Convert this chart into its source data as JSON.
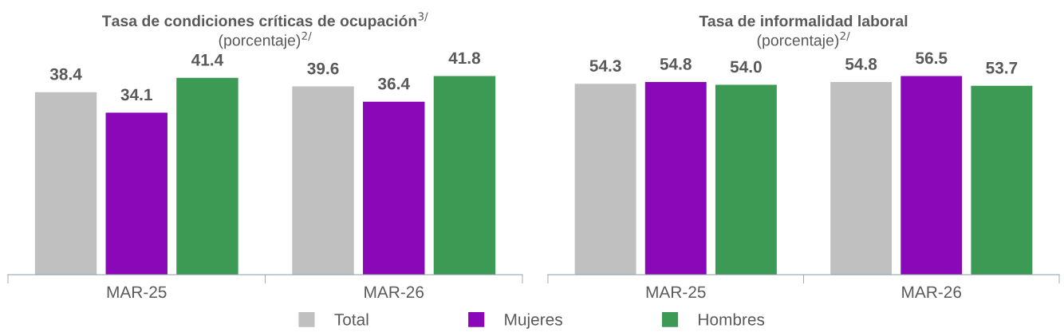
{
  "chart_data": [
    {
      "type": "bar",
      "title": "Tasa de condiciones críticas de ocupación$^{3/}$",
      "subtitle": "(porcentaje)$^{2/}$",
      "categories": [
        "MAR-25",
        "MAR-26"
      ],
      "tick_labels": "x",
      "legend": "bottom",
      "grid": false,
      "series": [
        {
          "name": "Total",
          "color": "#c0c0c0",
          "values": [
            38.4,
            39.6
          ],
          "value_labels": [
            "38.4",
            "39.6"
          ]
        },
        {
          "name": "Mujeres",
          "color": "#8a08b8",
          "values": [
            34.1,
            36.4
          ],
          "value_labels": [
            "34.1",
            "36.4"
          ]
        },
        {
          "name": "Hombres",
          "color": "#3d9a55",
          "values": [
            41.4,
            41.8
          ],
          "value_labels": [
            "41.4",
            "41.8"
          ]
        }
      ]
    },
    {
      "type": "bar",
      "title": "Tasa de informalidad laboral",
      "subtitle": "(porcentaje)$^{2/}$",
      "categories": [
        "MAR-25",
        "MAR-26"
      ],
      "tick_labels": "x",
      "grid": false,
      "series": [
        {
          "color": "#c0c0c0",
          "values": [
            54.3,
            54.8
          ],
          "value_labels": [
            "54.3",
            "54.8"
          ]
        },
        {
          "color": "#8a08b8",
          "values": [
            54.8,
            56.5
          ],
          "value_labels": [
            "54.8",
            "56.5"
          ]
        },
        {
          "color": "#3d9a55",
          "values": [
            54.0,
            53.7
          ],
          "value_labels": [
            "54.0",
            "53.7"
          ]
        }
      ]
    }
  ]
}
